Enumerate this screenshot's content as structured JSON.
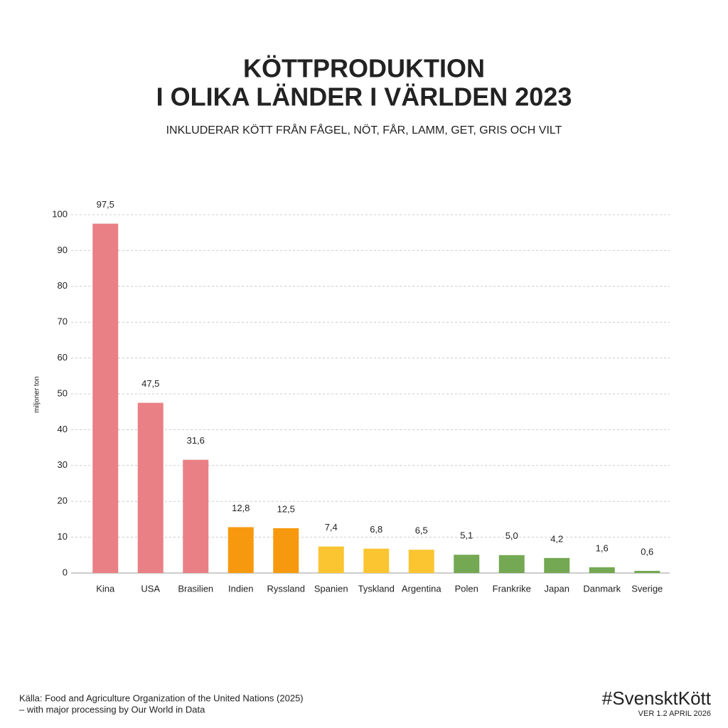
{
  "chart_data": {
    "type": "bar",
    "title": [
      "KÖTTPRODUKTION",
      "I OLIKA LÄNDER I VÄRLDEN 2023"
    ],
    "subtitle": "INKLUDERAR KÖTT FRÅN FÅGEL, NÖT, FÅR, LAMM, GET, GRIS OCH VILT",
    "y_label": "miljoner ton",
    "categories": [
      "Kina",
      "USA",
      "Brasilien",
      "Indien",
      "Ryssland",
      "Spanien",
      "Tyskland",
      "Argentina",
      "Polen",
      "Frankrike",
      "Japan",
      "Danmark",
      "Sverige"
    ],
    "values": [
      97.5,
      47.5,
      31.6,
      12.8,
      12.5,
      7.4,
      6.8,
      6.5,
      5.1,
      5.0,
      4.2,
      1.6,
      0.6
    ],
    "value_labels": [
      "97,5",
      "47,5",
      "31,6",
      "12,8",
      "12,5",
      "7,4",
      "6,8",
      "6,5",
      "5,1",
      "5,0",
      "4,2",
      "1,6",
      "0,6"
    ],
    "colors": [
      "#e98085",
      "#e98085",
      "#e98085",
      "#f7990f",
      "#f7990f",
      "#fbc531",
      "#fbc531",
      "#fbc531",
      "#74a853",
      "#74a853",
      "#74a853",
      "#74a853",
      "#74a853"
    ],
    "ylim": [
      0,
      100
    ],
    "yticks": [
      0,
      10,
      20,
      30,
      40,
      50,
      60,
      70,
      80,
      90,
      100
    ],
    "grid": true,
    "source": [
      "Källa: Food and Agriculture Organization of the United Nations (2025)",
      "– with major processing by Our World in Data"
    ],
    "brand": "#SvensktKött",
    "version": "VER 1.2 APRIL 2026"
  }
}
